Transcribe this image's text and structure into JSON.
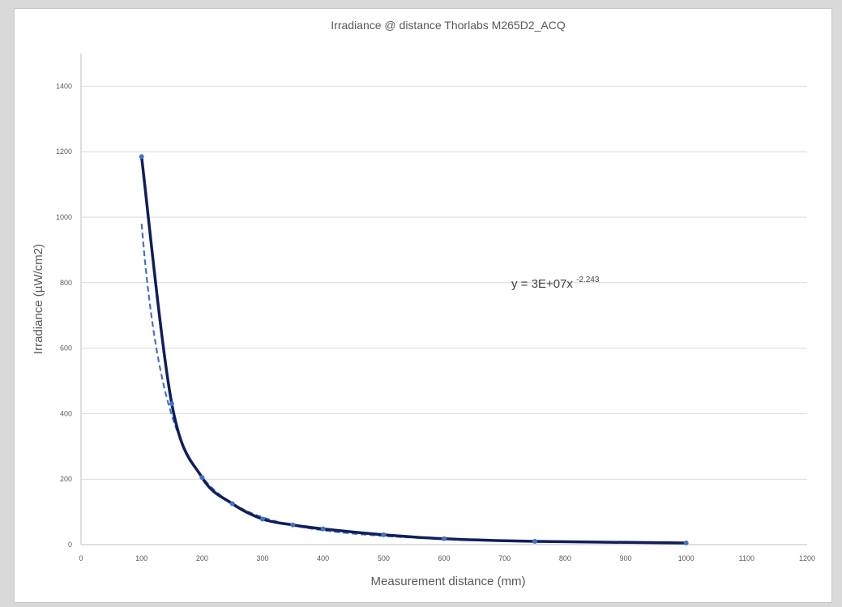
{
  "chart_data": {
    "type": "scatter",
    "title": "Irradiance @ distance Thorlabs  M265D2_ACQ",
    "xlabel": "Measurement distance (mm)",
    "ylabel": "Irradiance (µW/cm2)",
    "xlim": [
      0,
      1200
    ],
    "ylim": [
      0,
      1500
    ],
    "x_ticks": [
      0,
      100,
      200,
      300,
      400,
      500,
      600,
      700,
      800,
      900,
      1000,
      1100,
      1200
    ],
    "y_ticks": [
      0,
      200,
      400,
      600,
      800,
      1000,
      1200,
      1400
    ],
    "grid": "horizontal",
    "series": [
      {
        "style": "solid line with markers",
        "color": "#0f1f5c",
        "marker_color": "#4472c4",
        "x": [
          100,
          150,
          200,
          250,
          300,
          350,
          400,
          500,
          600,
          750,
          1000
        ],
        "y": [
          1185,
          430,
          205,
          125,
          78,
          60,
          48,
          30,
          18,
          10,
          5
        ]
      }
    ],
    "trendline": {
      "type": "power",
      "style": "dashed",
      "color": "#4472c4",
      "coefficient": 30000000,
      "exponent": -2.243,
      "x_range": [
        100,
        1000
      ]
    },
    "equation": {
      "text": "y = 3E+07x",
      "exponent_text": "-2.243"
    }
  }
}
